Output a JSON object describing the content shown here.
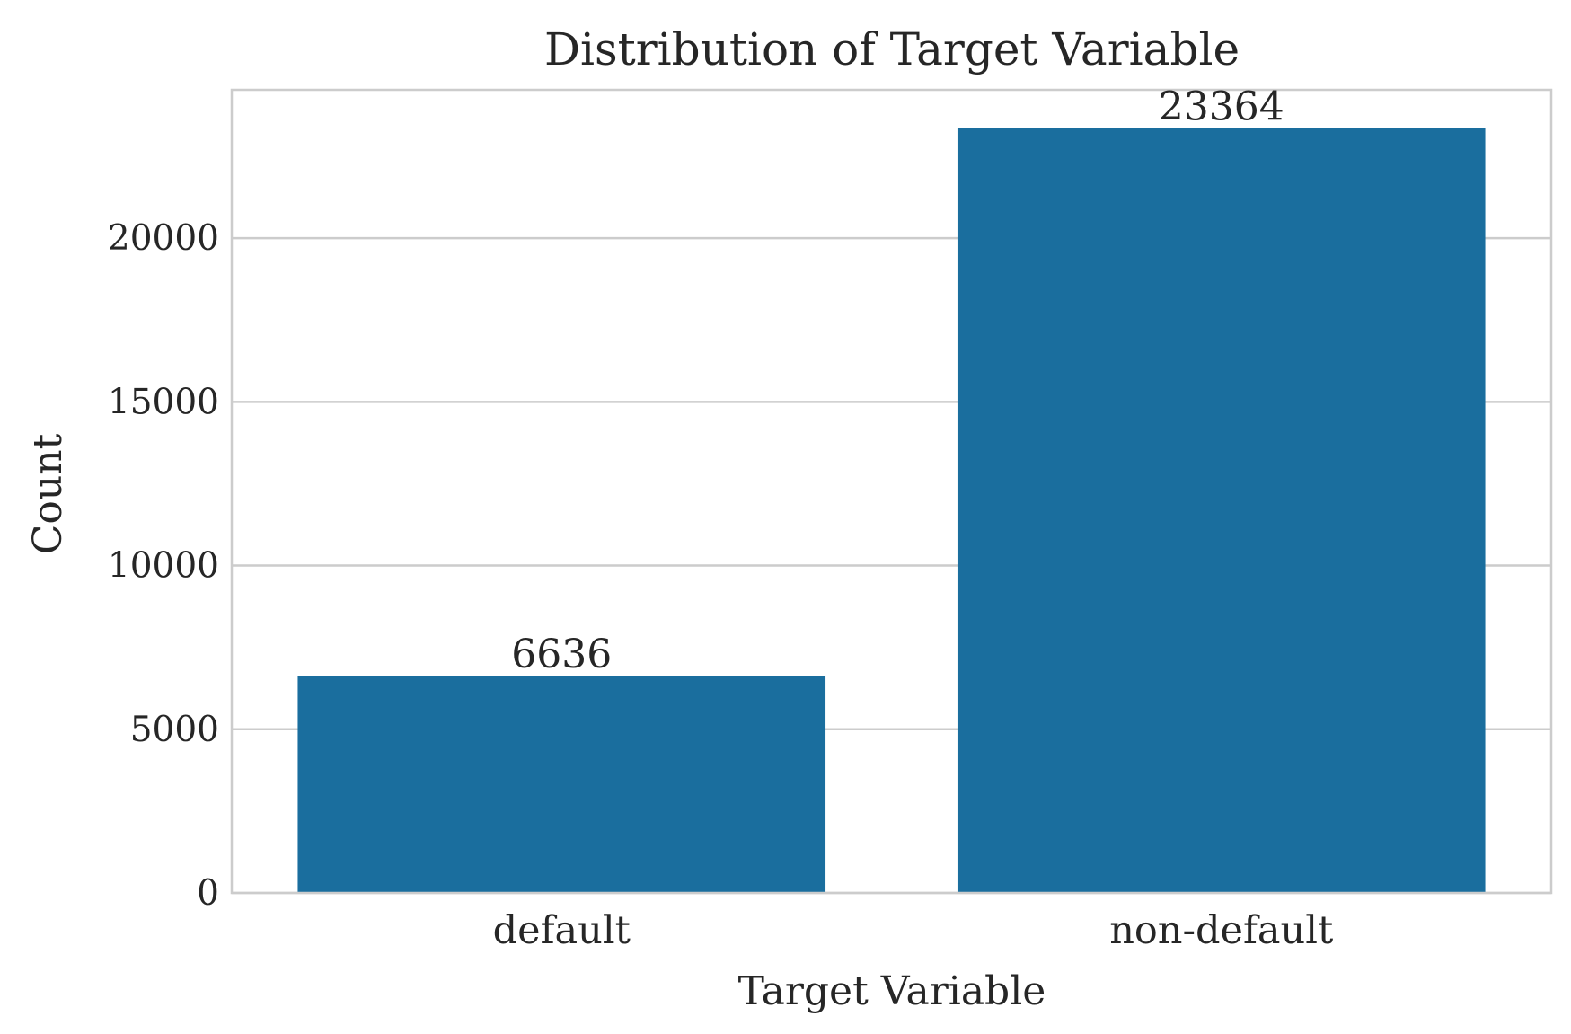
{
  "chart_data": {
    "type": "bar",
    "title": "Distribution of Target Variable",
    "xlabel": "Target Variable",
    "ylabel": "Count",
    "categories": [
      "default",
      "non-default"
    ],
    "values": [
      6636,
      23364
    ],
    "data_labels": [
      "6636",
      "23364"
    ],
    "yticks": [
      0,
      5000,
      10000,
      15000,
      20000
    ],
    "ytick_labels": [
      "0",
      "5000",
      "10000",
      "15000",
      "20000"
    ],
    "ylim": [
      0,
      24530
    ],
    "grid": true,
    "legend": "none",
    "bar_color": "#1a6e9e"
  }
}
